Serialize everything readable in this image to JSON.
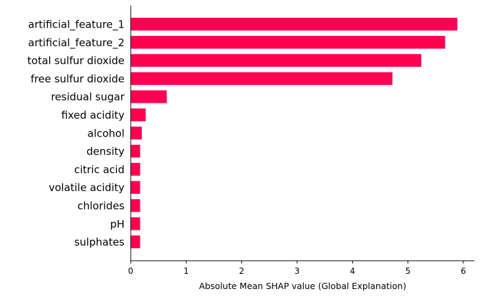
{
  "chart_data": {
    "type": "bar",
    "orientation": "horizontal",
    "categories": [
      "artificial_feature_1",
      "artificial_feature_2",
      "total sulfur dioxide",
      "free sulfur dioxide",
      "residual sugar",
      "fixed acidity",
      "alcohol",
      "density",
      "citric acid",
      "volatile acidity",
      "chlorides",
      "pH",
      "sulphates"
    ],
    "values": [
      5.89,
      5.67,
      5.24,
      4.72,
      0.65,
      0.27,
      0.2,
      0.17,
      0.17,
      0.17,
      0.17,
      0.17,
      0.17
    ],
    "xlabel": "Absolute Mean SHAP value (Global Explanation)",
    "ylabel": "",
    "xlim": [
      0,
      6.2
    ],
    "xticks": [
      0,
      1,
      2,
      3,
      4,
      5,
      6
    ],
    "bar_color": "#ff0051",
    "grid": false
  }
}
